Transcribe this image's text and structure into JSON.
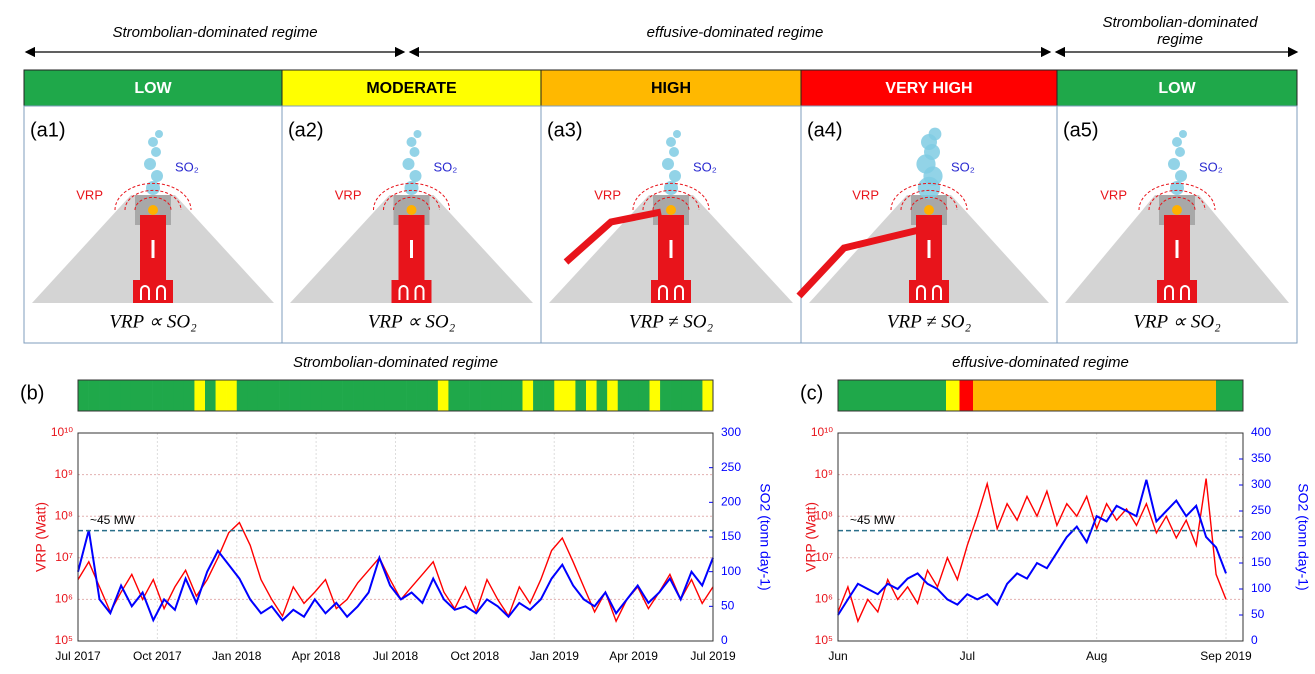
{
  "regimes": [
    {
      "label": "Strombolian-dominated regime"
    },
    {
      "label": "effusive-dominated regime"
    },
    {
      "label": "Strombolian-dominated regime"
    }
  ],
  "levels": [
    {
      "label": "LOW",
      "color": "#1fa84a"
    },
    {
      "label": "MODERATE",
      "color": "#ffff00"
    },
    {
      "label": "HIGH",
      "color": "#ffb800"
    },
    {
      "label": "VERY HIGH",
      "color": "#ff0000"
    },
    {
      "label": "LOW",
      "color": "#1fa84a"
    }
  ],
  "panels": [
    {
      "id": "(a1)",
      "vrp": "VRP",
      "so2": "SO₂",
      "relation": "VRP ∝ SO₂"
    },
    {
      "id": "(a2)",
      "vrp": "VRP",
      "so2": "SO₂",
      "relation": "VRP ∝ SO₂"
    },
    {
      "id": "(a3)",
      "vrp": "VRP",
      "so2": "SO₂",
      "relation": "VRP ≠ SO₂"
    },
    {
      "id": "(a4)",
      "vrp": "VRP",
      "so2": "SO₂",
      "relation": "VRP ≠ SO₂"
    },
    {
      "id": "(a5)",
      "vrp": "VRP",
      "so2": "SO₂",
      "relation": "VRP ∝ SO₂"
    }
  ],
  "chart_data": [
    {
      "type": "line",
      "panel_label": "(b)",
      "title": "Strombolian-dominated regime",
      "activity_bar": {
        "palette": [
          "#1fa84a",
          "#ffff00",
          "#ffb800",
          "#ff0000"
        ],
        "cells": [
          0,
          0,
          0,
          0,
          0,
          0,
          0,
          0,
          0,
          0,
          0,
          1,
          0,
          1,
          1,
          0,
          0,
          0,
          0,
          0,
          0,
          0,
          0,
          0,
          0,
          0,
          0,
          0,
          0,
          0,
          0,
          0,
          0,
          0,
          1,
          0,
          0,
          0,
          0,
          0,
          0,
          0,
          1,
          0,
          0,
          1,
          1,
          0,
          1,
          0,
          1,
          0,
          0,
          0,
          1,
          0,
          0,
          0,
          0,
          1
        ]
      },
      "ylabel": "VRP (Watt)",
      "y2label": "SO2 (tonn day-1)",
      "log_y": true,
      "grid": true,
      "xlim": [
        "2017-07",
        "2019-07"
      ],
      "xticks": [
        {
          "value": "2017-07",
          "label": "Jul 2017"
        },
        {
          "value": "2017-10",
          "label": "Oct 2017"
        },
        {
          "value": "2018-01",
          "label": "Jan 2018"
        },
        {
          "value": "2018-04",
          "label": "Apr 2018"
        },
        {
          "value": "2018-07",
          "label": "Jul 2018"
        },
        {
          "value": "2018-10",
          "label": "Oct 2018"
        },
        {
          "value": "2019-01",
          "label": "Jan 2019"
        },
        {
          "value": "2019-04",
          "label": "Apr 2019"
        },
        {
          "value": "2019-07",
          "label": "Jul 2019"
        }
      ],
      "ylim": [
        100000,
        10000000000
      ],
      "yticks": [
        {
          "value": 100000,
          "label": "10⁵"
        },
        {
          "value": 1000000,
          "label": "10⁶"
        },
        {
          "value": 10000000,
          "label": "10⁷"
        },
        {
          "value": 100000000,
          "label": "10⁸"
        },
        {
          "value": 1000000000,
          "label": "10⁹"
        },
        {
          "value": 10000000000,
          "label": "10¹⁰"
        }
      ],
      "y2lim": [
        0,
        300
      ],
      "y2ticks": [
        0,
        50,
        100,
        150,
        200,
        250,
        300
      ],
      "threshold": {
        "value": 45000000,
        "label": "~45 MW"
      },
      "series": [
        {
          "color": "#ff0000",
          "values": [
            3000000,
            8000000,
            2000000,
            500000,
            1500000,
            4000000,
            1000000,
            3000000,
            600000,
            2000000,
            5000000,
            1200000,
            3000000,
            10000000,
            40000000,
            70000000,
            20000000,
            3000000,
            1000000,
            400000,
            2000000,
            800000,
            1500000,
            3000000,
            600000,
            1000000,
            2500000,
            5000000,
            10000000,
            3000000,
            1000000,
            2000000,
            4000000,
            8000000,
            1500000,
            600000,
            2000000,
            500000,
            3000000,
            1000000,
            400000,
            2000000,
            800000,
            3000000,
            15000000,
            30000000,
            8000000,
            2000000,
            500000,
            1500000,
            300000,
            1000000,
            2000000,
            600000,
            1500000,
            4000000,
            1000000,
            3000000,
            800000,
            2000000
          ]
        },
        {
          "color": "#0000ff",
          "axis": "y2",
          "values": [
            100,
            160,
            60,
            40,
            80,
            50,
            70,
            30,
            60,
            45,
            90,
            55,
            100,
            130,
            110,
            90,
            60,
            40,
            50,
            30,
            45,
            35,
            60,
            40,
            55,
            35,
            50,
            70,
            120,
            80,
            60,
            70,
            55,
            90,
            60,
            45,
            50,
            40,
            60,
            50,
            35,
            55,
            45,
            60,
            90,
            110,
            80,
            60,
            50,
            70,
            40,
            60,
            80,
            55,
            70,
            90,
            60,
            100,
            80,
            120
          ]
        }
      ]
    },
    {
      "type": "line",
      "panel_label": "(c)",
      "title": "effusive-dominated regime",
      "activity_bar": {
        "palette": [
          "#1fa84a",
          "#ffff00",
          "#ffb800",
          "#ff0000"
        ],
        "cells": [
          0,
          0,
          0,
          0,
          0,
          0,
          0,
          0,
          1,
          3,
          2,
          2,
          2,
          2,
          2,
          2,
          2,
          2,
          2,
          2,
          2,
          2,
          2,
          2,
          2,
          2,
          2,
          2,
          0,
          0
        ]
      },
      "ylabel": "VRP (Watt)",
      "y2label": "SO2 (tonn day-1)",
      "log_y": true,
      "grid": true,
      "xlim": [
        "2019-06",
        "2019-09"
      ],
      "xticks": [
        {
          "value": "2019-06",
          "label": "Jun"
        },
        {
          "value": "2019-07",
          "label": "Jul"
        },
        {
          "value": "2019-08",
          "label": "Aug"
        },
        {
          "value": "2019-09",
          "label": "Sep 2019"
        }
      ],
      "ylim": [
        100000,
        10000000000
      ],
      "yticks": [
        {
          "value": 100000,
          "label": "10⁵"
        },
        {
          "value": 1000000,
          "label": "10⁶"
        },
        {
          "value": 10000000,
          "label": "10⁷"
        },
        {
          "value": 100000000,
          "label": "10⁸"
        },
        {
          "value": 1000000000,
          "label": "10⁹"
        },
        {
          "value": 10000000000,
          "label": "10¹⁰"
        }
      ],
      "y2lim": [
        0,
        400
      ],
      "y2ticks": [
        0,
        50,
        100,
        150,
        200,
        250,
        300,
        350,
        400
      ],
      "threshold": {
        "value": 45000000,
        "label": "~45 MW"
      },
      "series": [
        {
          "color": "#ff0000",
          "values": [
            500000,
            2000000,
            300000,
            1000000,
            500000,
            3000000,
            1000000,
            2000000,
            800000,
            5000000,
            2000000,
            10000000,
            3000000,
            20000000,
            100000000,
            600000000,
            50000000,
            200000000,
            80000000,
            300000000,
            100000000,
            400000000,
            60000000,
            200000000,
            100000000,
            300000000,
            50000000,
            200000000,
            80000000,
            150000000,
            60000000,
            200000000,
            40000000,
            100000000,
            30000000,
            80000000,
            20000000,
            800000000,
            4000000,
            1000000
          ]
        },
        {
          "color": "#0000ff",
          "axis": "y2",
          "values": [
            50,
            80,
            110,
            100,
            90,
            110,
            100,
            120,
            130,
            110,
            100,
            80,
            70,
            90,
            80,
            90,
            70,
            110,
            130,
            120,
            150,
            140,
            170,
            200,
            220,
            190,
            240,
            230,
            260,
            250,
            240,
            310,
            230,
            250,
            270,
            240,
            260,
            200,
            180,
            130
          ]
        }
      ]
    }
  ]
}
